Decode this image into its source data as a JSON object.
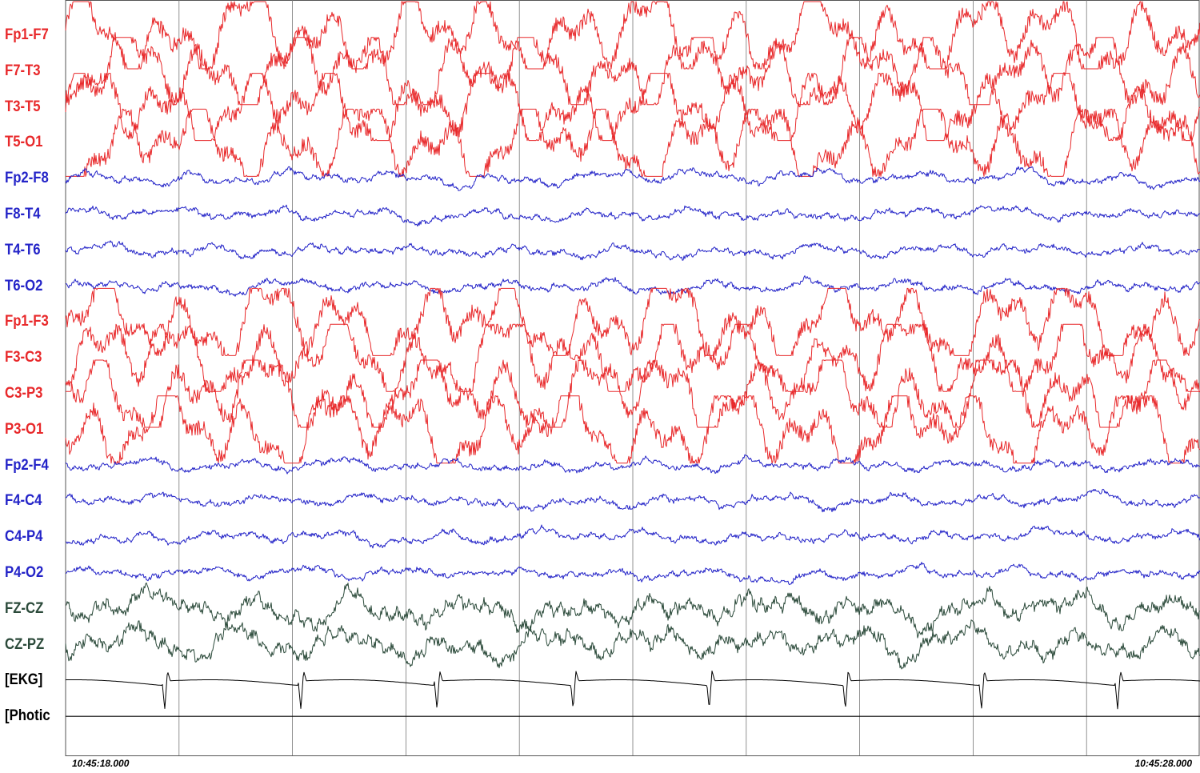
{
  "chart_data": {
    "type": "line",
    "title": "",
    "time_start": "10:45:18.000",
    "time_end": "10:45:28.000",
    "duration_seconds": 10,
    "grid_divisions": 10,
    "colors": {
      "left": "#e8292b",
      "right": "#2424c8",
      "midline": "#2b4a3a",
      "other": "#000000"
    },
    "channels": [
      {
        "label": "Fp1-F7",
        "group": "left",
        "amplitude": "high"
      },
      {
        "label": "F7-T3",
        "group": "left",
        "amplitude": "high"
      },
      {
        "label": "T3-T5",
        "group": "left",
        "amplitude": "high"
      },
      {
        "label": "T5-O1",
        "group": "left",
        "amplitude": "high"
      },
      {
        "label": "Fp2-F8",
        "group": "right",
        "amplitude": "low"
      },
      {
        "label": "F8-T4",
        "group": "right",
        "amplitude": "low"
      },
      {
        "label": "T4-T6",
        "group": "right",
        "amplitude": "low"
      },
      {
        "label": "T6-O2",
        "group": "right",
        "amplitude": "low"
      },
      {
        "label": "Fp1-F3",
        "group": "left",
        "amplitude": "high"
      },
      {
        "label": "F3-C3",
        "group": "left",
        "amplitude": "high"
      },
      {
        "label": "C3-P3",
        "group": "left",
        "amplitude": "high"
      },
      {
        "label": "P3-O1",
        "group": "left",
        "amplitude": "high"
      },
      {
        "label": "Fp2-F4",
        "group": "right",
        "amplitude": "low"
      },
      {
        "label": "F4-C4",
        "group": "right",
        "amplitude": "low"
      },
      {
        "label": "C4-P4",
        "group": "right",
        "amplitude": "low"
      },
      {
        "label": "P4-O2",
        "group": "right",
        "amplitude": "low"
      },
      {
        "label": "FZ-CZ",
        "group": "midline",
        "amplitude": "medium"
      },
      {
        "label": "CZ-PZ",
        "group": "midline",
        "amplitude": "medium"
      },
      {
        "label": "[EKG]",
        "group": "other",
        "amplitude": "ekg"
      },
      {
        "label": "[Photic",
        "group": "other",
        "amplitude": "flat"
      }
    ]
  }
}
